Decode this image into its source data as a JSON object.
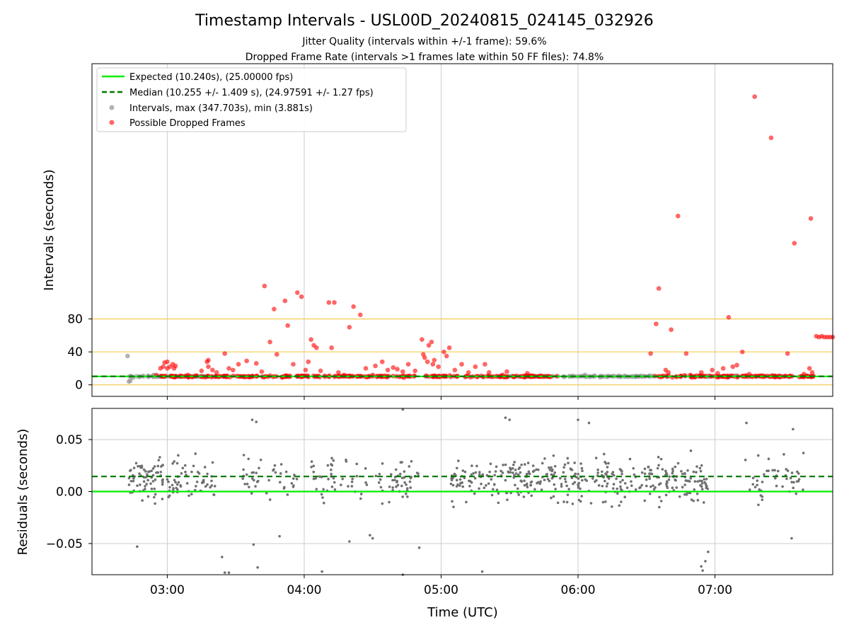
{
  "title": "Timestamp Intervals - USL00D_20240815_024145_032926",
  "subtitles": [
    "Jitter Quality (intervals within +/-1 frame): 59.6%",
    "Dropped Frame Rate (intervals >1 frames late within 50 FF files): 74.8%"
  ],
  "colors": {
    "expected": "#00ee00",
    "median": "#007700",
    "intervals": "#999999",
    "dropped": "#ff0000",
    "residual_points": "#707070",
    "threshold_lines": "#f2cd52",
    "grid": "#cccccc"
  },
  "chart_data": [
    {
      "type": "scatter",
      "panel": "intervals",
      "ylabel": "Intervals (seconds)",
      "x_unit": "hours UTC",
      "xlim": [
        2.45,
        7.86
      ],
      "ylim": [
        -14,
        390
      ],
      "yticks": [
        0,
        40,
        80
      ],
      "ytick_labels": [
        "0",
        "40",
        "80"
      ],
      "xticks": [
        3,
        4,
        5,
        6,
        7
      ],
      "xtick_labels": [
        "03:00",
        "04:00",
        "05:00",
        "06:00",
        "07:00"
      ],
      "grid": true,
      "threshold_lines": [
        0,
        40,
        80
      ],
      "expected_interval": 10.24,
      "median_interval": 10.255,
      "legend_position": "upper-left",
      "legend": [
        "Expected (10.240s), (25.00000 fps)",
        "Median (10.255 +/- 1.409 s), (24.97591 +/- 1.27 fps)",
        "Intervals, max (347.703s), min (3.881s)",
        "Possible Dropped Frames"
      ],
      "dense_series": [
        {
          "x_range": [
            2.72,
            3.3
          ],
          "y_center": 10.3,
          "y_spread": 0.6,
          "count": 60,
          "role": "intervals"
        },
        {
          "x_range": [
            5.5,
            6.55
          ],
          "y_center": 10.3,
          "y_spread": 0.6,
          "count": 110,
          "role": "intervals"
        },
        {
          "x_range": [
            2.95,
            5.85
          ],
          "y_center": 10.3,
          "y_spread": 1.0,
          "count": 300,
          "role": "dropped"
        },
        {
          "x_range": [
            6.55,
            7.72
          ],
          "y_center": 10.3,
          "y_spread": 1.0,
          "count": 140,
          "role": "dropped"
        }
      ],
      "interval_points": [
        [
          2.71,
          35
        ],
        [
          2.72,
          3.9
        ],
        [
          2.73,
          5
        ],
        [
          2.74,
          10
        ],
        [
          2.75,
          9
        ],
        [
          2.8,
          10
        ],
        [
          2.86,
          11
        ],
        [
          2.9,
          12
        ],
        [
          6.05,
          12
        ],
        [
          6.12,
          11
        ],
        [
          6.3,
          10
        ],
        [
          6.95,
          10
        ],
        [
          7.15,
          11
        ]
      ],
      "dropped_points": [
        [
          2.92,
          12
        ],
        [
          2.95,
          20
        ],
        [
          2.97,
          22
        ],
        [
          2.98,
          27
        ],
        [
          3.0,
          28
        ],
        [
          3.0,
          20
        ],
        [
          3.02,
          22
        ],
        [
          3.04,
          25
        ],
        [
          3.05,
          20
        ],
        [
          3.06,
          23
        ],
        [
          3.15,
          12
        ],
        [
          3.25,
          17
        ],
        [
          3.29,
          28
        ],
        [
          3.3,
          30
        ],
        [
          3.3,
          22
        ],
        [
          3.33,
          18
        ],
        [
          3.36,
          15
        ],
        [
          3.42,
          38
        ],
        [
          3.45,
          20
        ],
        [
          3.48,
          18
        ],
        [
          3.52,
          25
        ],
        [
          3.58,
          29
        ],
        [
          3.65,
          26
        ],
        [
          3.69,
          16
        ],
        [
          3.71,
          120
        ],
        [
          3.75,
          52
        ],
        [
          3.78,
          92
        ],
        [
          3.8,
          37
        ],
        [
          3.86,
          102
        ],
        [
          3.88,
          72
        ],
        [
          3.92,
          25
        ],
        [
          3.95,
          112
        ],
        [
          3.98,
          107
        ],
        [
          4.01,
          18
        ],
        [
          4.03,
          28
        ],
        [
          4.05,
          55
        ],
        [
          4.07,
          48
        ],
        [
          4.09,
          45
        ],
        [
          4.12,
          17
        ],
        [
          4.15,
          11
        ],
        [
          4.18,
          100
        ],
        [
          4.22,
          100
        ],
        [
          4.2,
          45
        ],
        [
          4.25,
          15
        ],
        [
          4.29,
          12
        ],
        [
          4.33,
          70
        ],
        [
          4.36,
          95
        ],
        [
          4.41,
          85
        ],
        [
          4.45,
          20
        ],
        [
          4.5,
          12
        ],
        [
          4.52,
          23
        ],
        [
          4.57,
          28
        ],
        [
          4.61,
          18
        ],
        [
          4.65,
          21
        ],
        [
          4.68,
          19
        ],
        [
          4.72,
          16
        ],
        [
          4.76,
          25
        ],
        [
          4.81,
          17
        ],
        [
          4.86,
          55
        ],
        [
          4.87,
          37
        ],
        [
          4.88,
          33
        ],
        [
          4.9,
          28
        ],
        [
          4.91,
          48
        ],
        [
          4.93,
          52
        ],
        [
          4.94,
          25
        ],
        [
          4.95,
          30
        ],
        [
          4.98,
          22
        ],
        [
          5.02,
          40
        ],
        [
          5.04,
          35
        ],
        [
          5.06,
          45
        ],
        [
          5.1,
          18
        ],
        [
          5.15,
          25
        ],
        [
          5.2,
          15
        ],
        [
          5.25,
          22
        ],
        [
          5.32,
          25
        ],
        [
          5.35,
          15
        ],
        [
          5.45,
          12
        ],
        [
          5.48,
          16
        ],
        [
          5.55,
          11
        ],
        [
          5.63,
          14
        ],
        [
          6.53,
          38
        ],
        [
          6.57,
          74
        ],
        [
          6.59,
          117
        ],
        [
          6.64,
          18
        ],
        [
          6.66,
          15
        ],
        [
          6.68,
          67
        ],
        [
          6.73,
          205
        ],
        [
          6.79,
          38
        ],
        [
          6.82,
          12
        ],
        [
          6.9,
          15
        ],
        [
          6.98,
          18
        ],
        [
          7.02,
          14
        ],
        [
          7.06,
          20
        ],
        [
          7.1,
          82
        ],
        [
          7.13,
          22
        ],
        [
          7.16,
          24
        ],
        [
          7.2,
          40
        ],
        [
          7.25,
          13
        ],
        [
          7.29,
          350
        ],
        [
          7.41,
          300
        ],
        [
          7.53,
          38
        ],
        [
          7.58,
          172
        ],
        [
          7.65,
          13
        ],
        [
          7.69,
          20
        ],
        [
          7.71,
          15
        ],
        [
          7.7,
          202
        ],
        [
          7.74,
          59
        ],
        [
          7.76,
          58
        ],
        [
          7.78,
          59
        ],
        [
          7.8,
          58
        ],
        [
          7.82,
          58
        ],
        [
          7.84,
          58
        ],
        [
          7.86,
          58
        ]
      ]
    },
    {
      "type": "scatter",
      "panel": "residuals",
      "xlabel": "Time (UTC)",
      "ylabel": "Residuals (seconds)",
      "xlim": [
        2.45,
        7.86
      ],
      "ylim": [
        -0.08,
        0.08
      ],
      "yticks": [
        -0.05,
        0.0,
        0.05
      ],
      "ytick_labels": [
        "−0.05",
        "0.00",
        "0.05"
      ],
      "xticks": [
        3,
        4,
        5,
        6,
        7
      ],
      "xtick_labels": [
        "03:00",
        "04:00",
        "05:00",
        "06:00",
        "07:00"
      ],
      "grid": true,
      "expected_residual": 0.0,
      "median_residual": 0.0145,
      "point_clusters": [
        {
          "x_range": [
            2.72,
            2.97
          ],
          "count": 70
        },
        {
          "x_range": [
            3.0,
            3.35
          ],
          "count": 60
        },
        {
          "x_range": [
            3.55,
            3.95
          ],
          "count": 40
        },
        {
          "x_range": [
            4.05,
            4.85
          ],
          "count": 90
        },
        {
          "x_range": [
            5.07,
            6.95
          ],
          "count": 380
        },
        {
          "x_range": [
            7.22,
            7.65
          ],
          "count": 45
        }
      ],
      "outlier_points": [
        [
          2.78,
          -0.053
        ],
        [
          3.4,
          -0.063
        ],
        [
          3.42,
          -0.078
        ],
        [
          3.45,
          -0.078
        ],
        [
          3.66,
          -0.073
        ],
        [
          3.63,
          -0.051
        ],
        [
          3.82,
          -0.043
        ],
        [
          4.13,
          -0.077
        ],
        [
          4.33,
          -0.048
        ],
        [
          4.48,
          -0.042
        ],
        [
          4.5,
          -0.045
        ],
        [
          4.72,
          -0.08
        ],
        [
          4.84,
          -0.054
        ],
        [
          5.3,
          -0.077
        ],
        [
          6.9,
          -0.072
        ],
        [
          6.93,
          -0.067
        ],
        [
          6.95,
          -0.058
        ],
        [
          6.91,
          -0.076
        ],
        [
          7.56,
          -0.045
        ],
        [
          3.62,
          0.069
        ],
        [
          3.65,
          0.067
        ],
        [
          4.72,
          0.079
        ],
        [
          5.47,
          0.071
        ],
        [
          5.5,
          0.069
        ],
        [
          6.0,
          0.069
        ],
        [
          6.08,
          0.066
        ],
        [
          7.23,
          0.066
        ],
        [
          7.57,
          0.06
        ]
      ]
    }
  ]
}
